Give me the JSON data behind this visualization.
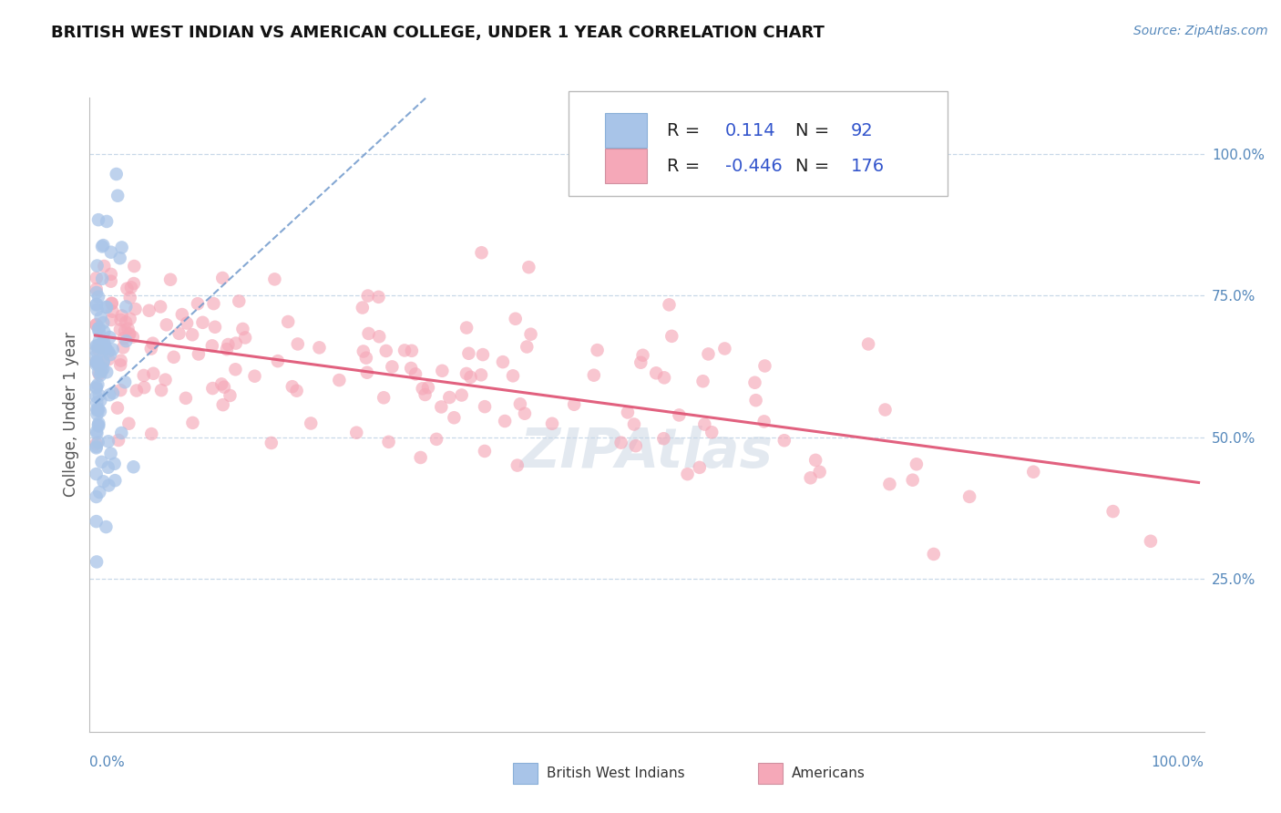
{
  "title": "BRITISH WEST INDIAN VS AMERICAN COLLEGE, UNDER 1 YEAR CORRELATION CHART",
  "source": "Source: ZipAtlas.com",
  "ylabel": "College, Under 1 year",
  "right_yticks": [
    "100.0%",
    "75.0%",
    "50.0%",
    "25.0%"
  ],
  "right_ytick_vals": [
    1.0,
    0.75,
    0.5,
    0.25
  ],
  "r1": 0.114,
  "n1": 92,
  "r2": -0.446,
  "n2": 176,
  "watermark": "ZIPAtlas",
  "blue_fill": "#a8c4e8",
  "pink_fill": "#f5a8b8",
  "blue_line_color": "#7099cc",
  "pink_line_color": "#e05878",
  "grid_color": "#c8d8e8",
  "title_color": "#111111",
  "axis_label_color": "#5588bb",
  "legend_text_color_black": "#222222",
  "legend_num_color": "#3355cc",
  "ylabel_color": "#555555"
}
